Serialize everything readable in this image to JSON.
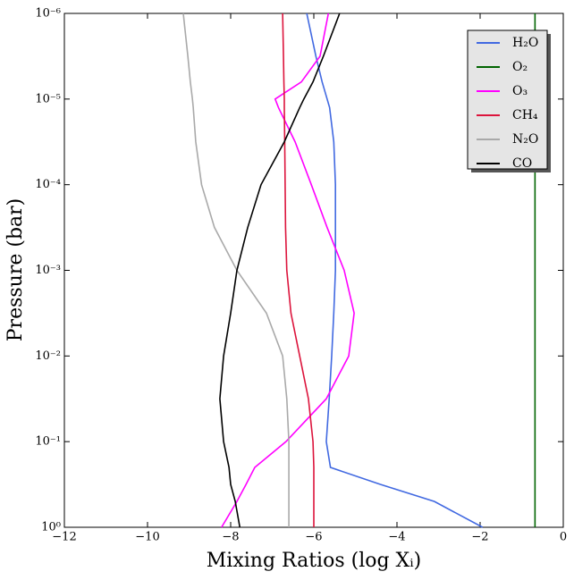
{
  "chart_data": {
    "type": "line",
    "xlabel": "Mixing Ratios (log Xᵢ)",
    "ylabel": "Pressure (bar)",
    "y": [
      1e-06,
      3.16e-06,
      6.31e-06,
      1e-05,
      1.26e-05,
      3.16e-05,
      0.0001,
      0.000316,
      0.001,
      0.00316,
      0.01,
      0.0316,
      0.1,
      0.2,
      0.316,
      0.5,
      1
    ],
    "series": [
      {
        "name": "H₂O",
        "color": "#4169e1",
        "values": [
          -6.17,
          -5.95,
          -5.8,
          -5.68,
          -5.62,
          -5.52,
          -5.48,
          -5.48,
          -5.48,
          -5.52,
          -5.57,
          -5.63,
          -5.7,
          -5.6,
          -4.4,
          -3.1,
          -1.94
        ]
      },
      {
        "name": "O₂",
        "color": "#006400",
        "values": [
          -0.68,
          -0.68,
          -0.68,
          -0.68,
          -0.68,
          -0.68,
          -0.68,
          -0.68,
          -0.68,
          -0.68,
          -0.68,
          -0.68,
          -0.68,
          -0.68,
          -0.68,
          -0.68,
          -0.68
        ]
      },
      {
        "name": "O₃",
        "color": "#ff00ff",
        "values": [
          -5.65,
          -5.85,
          -6.3,
          -6.93,
          -6.85,
          -6.45,
          -6.06,
          -5.68,
          -5.27,
          -5.03,
          -5.16,
          -5.7,
          -6.67,
          -7.42,
          -7.63,
          -7.85,
          -8.22
        ]
      },
      {
        "name": "CH₄",
        "color": "#dc143c",
        "values": [
          -6.75,
          -6.73,
          -6.72,
          -6.71,
          -6.71,
          -6.7,
          -6.69,
          -6.68,
          -6.65,
          -6.55,
          -6.34,
          -6.13,
          -6.02,
          -6.0,
          -6.0,
          -6.0,
          -6.0
        ]
      },
      {
        "name": "N₂O",
        "color": "#a9a9a9",
        "values": [
          -9.14,
          -9.03,
          -8.97,
          -8.92,
          -8.9,
          -8.84,
          -8.7,
          -8.39,
          -7.85,
          -7.14,
          -6.75,
          -6.65,
          -6.6,
          -6.6,
          -6.6,
          -6.6,
          -6.6
        ]
      },
      {
        "name": "CO",
        "color": "#000000",
        "values": [
          -5.38,
          -5.77,
          -6.02,
          -6.24,
          -6.34,
          -6.71,
          -7.27,
          -7.59,
          -7.85,
          -8.0,
          -8.17,
          -8.26,
          -8.17,
          -8.04,
          -8.0,
          -7.89,
          -7.78
        ]
      }
    ],
    "xlim": [
      -12,
      0
    ],
    "xticks": [
      {
        "value": -12,
        "label": "−12"
      },
      {
        "value": -10,
        "label": "−10"
      },
      {
        "value": -8,
        "label": "−8"
      },
      {
        "value": -6,
        "label": "−6"
      },
      {
        "value": -4,
        "label": "−4"
      },
      {
        "value": -2,
        "label": "−2"
      },
      0
    ],
    "ylim": [
      1e-06,
      1
    ],
    "yscale": "log",
    "y_inverted": true,
    "yticks": [
      {
        "value": 1e-06,
        "label": "10⁻⁶"
      },
      {
        "value": 1e-05,
        "label": "10⁻⁵"
      },
      {
        "value": 0.0001,
        "label": "10⁻⁴"
      },
      {
        "value": 0.001,
        "label": "10⁻³"
      },
      {
        "value": 0.01,
        "label": "10⁻²"
      },
      {
        "value": 0.1,
        "label": "10⁻¹"
      },
      {
        "value": 1,
        "label": "10⁰"
      }
    ],
    "legend": "upper right"
  }
}
